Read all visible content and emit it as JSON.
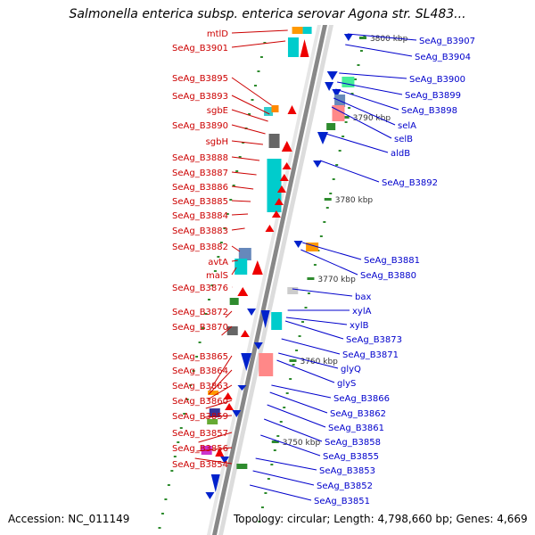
{
  "header": {
    "title": "Salmonella enterica subsp. enterica serovar Agona str. SL483..."
  },
  "footer": {
    "accession": "Accession: NC_011149",
    "topology": "Topology: circular; Length: 4,798,660 bp; Genes: 4,669"
  },
  "colors": {
    "left_labels": "#cc0000",
    "right_labels": "#0000cc",
    "backbone": "#888888"
  },
  "scale_ticks": [
    "3800 kbp",
    "3790 kbp",
    "3780 kbp",
    "3770 kbp",
    "3760 kbp",
    "3750 kbp"
  ],
  "left_labels": [
    "mtlD",
    "SeAg_B3901",
    "SeAg_B3895",
    "SeAg_B3893",
    "sgbE",
    "SeAg_B3890",
    "sgbH",
    "SeAg_B3888",
    "SeAg_B3887",
    "SeAg_B3886",
    "SeAg_B3885",
    "SeAg_B3884",
    "SeAg_B3883",
    "SeAg_B3882",
    "avtA",
    "malS",
    "SeAg_B3876",
    "SeAg_B3872",
    "SeAg_B3870",
    "SeAg_B3865",
    "SeAg_B3864",
    "SeAg_B3863",
    "SeAg_B3860",
    "SeAg_B3859",
    "SeAg_B3857",
    "SeAg_B3856",
    "SeAg_B3854"
  ],
  "right_labels": [
    "SeAg_B3907",
    "SeAg_B3904",
    "SeAg_B3900",
    "SeAg_B3899",
    "SeAg_B3898",
    "selA",
    "selB",
    "aldB",
    "SeAg_B3892",
    "SeAg_B3881",
    "SeAg_B3880",
    "bax",
    "xylA",
    "xylB",
    "SeAg_B3873",
    "SeAg_B3871",
    "glyQ",
    "glyS",
    "SeAg_B3866",
    "SeAg_B3862",
    "SeAg_B3861",
    "SeAg_B3858",
    "SeAg_B3855",
    "SeAg_B3853",
    "SeAg_B3852",
    "SeAg_B3851"
  ]
}
